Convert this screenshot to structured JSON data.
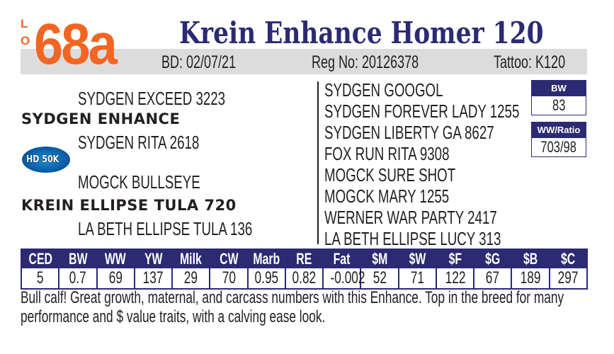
{
  "lot": {
    "label_letters": [
      "L",
      "O",
      "T"
    ],
    "number": "68a"
  },
  "title": "Krein Enhance Homer 120",
  "info_bar": {
    "birth_date": "BD: 02/07/21",
    "reg_no": "Reg No: 20126378",
    "tattoo": "Tattoo: K120"
  },
  "pedigree": {
    "sire_sire": "SYDGEN EXCEED 3223",
    "sire": "SYDGEN ENHANCE",
    "sire_dam": "SYDGEN RITA 2618",
    "dam_sire": "MOGCK BULLSEYE",
    "dam": "KREIN ELLIPSE TULA 720",
    "dam_dam": "LA BETH ELLIPSE TULA 136",
    "ancestors": [
      "SYDGEN GOOGOL",
      "SYDGEN FOREVER LADY 1255",
      "SYDGEN LIBERTY GA 8627",
      "FOX RUN RITA 9308",
      "MOGCK SURE SHOT",
      "MOGCK MARY 1255",
      "WERNER WAR PARTY 2417",
      "LA BETH ELLIPSE LUCY 313"
    ]
  },
  "badge": {
    "logo_text": "HD 50K",
    "color": "#0a5ea8"
  },
  "bw_box": {
    "label": "BW",
    "value": "83"
  },
  "ww_box": {
    "label": "WW/Ratio",
    "value": "703/98"
  },
  "epd": {
    "headers": [
      "CED",
      "BW",
      "WW",
      "YW",
      "Milk",
      "CW",
      "Marb",
      "RE",
      "Fat",
      "$M",
      "$W",
      "$F",
      "$G",
      "$B",
      "$C"
    ],
    "values": [
      "5",
      "0.7",
      "69",
      "137",
      "29",
      "70",
      "0.95",
      "0.82",
      "-0.002",
      "52",
      "71",
      "122",
      "67",
      "189",
      "297"
    ]
  },
  "comment": "Bull calf! Great growth, maternal, and carcass numbers with this Enhance. Top in the breed for many performance and $ value traits, with a calving ease look.",
  "colors": {
    "accent_orange": "#f26522",
    "navy": "#2b2a73",
    "bar_gray": "#dcdcdd"
  }
}
